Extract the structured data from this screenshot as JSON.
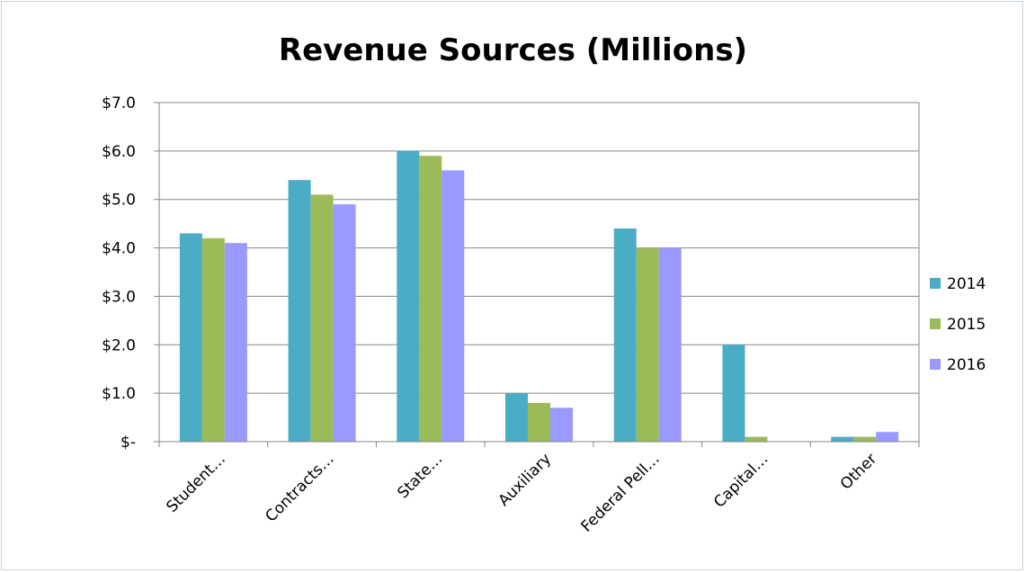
{
  "chart_data": {
    "type": "bar",
    "title": "Revenue Sources (Millions)",
    "categories": [
      "Student…",
      "Contracts…",
      "State…",
      "Auxiliary",
      "Federal Pell…",
      "Capital…",
      "Other"
    ],
    "series": [
      {
        "name": "2014",
        "color": "#4bacc6",
        "values": [
          4.3,
          5.4,
          6.0,
          1.0,
          4.4,
          2.0,
          0.1
        ]
      },
      {
        "name": "2015",
        "color": "#9bbb59",
        "values": [
          4.2,
          5.1,
          5.9,
          0.8,
          4.0,
          0.1,
          0.1
        ]
      },
      {
        "name": "2016",
        "color": "#9999ff",
        "values": [
          4.1,
          4.9,
          5.6,
          0.7,
          4.0,
          0.0,
          0.2
        ]
      }
    ],
    "ylim": [
      0,
      7
    ],
    "yticks": [
      0,
      1,
      2,
      3,
      4,
      5,
      6,
      7
    ],
    "ytick_labels": [
      "$-",
      "$1.0",
      "$2.0",
      "$3.0",
      "$4.0",
      "$5.0",
      "$6.0",
      "$7.0"
    ],
    "grid": true,
    "legend": "right"
  }
}
